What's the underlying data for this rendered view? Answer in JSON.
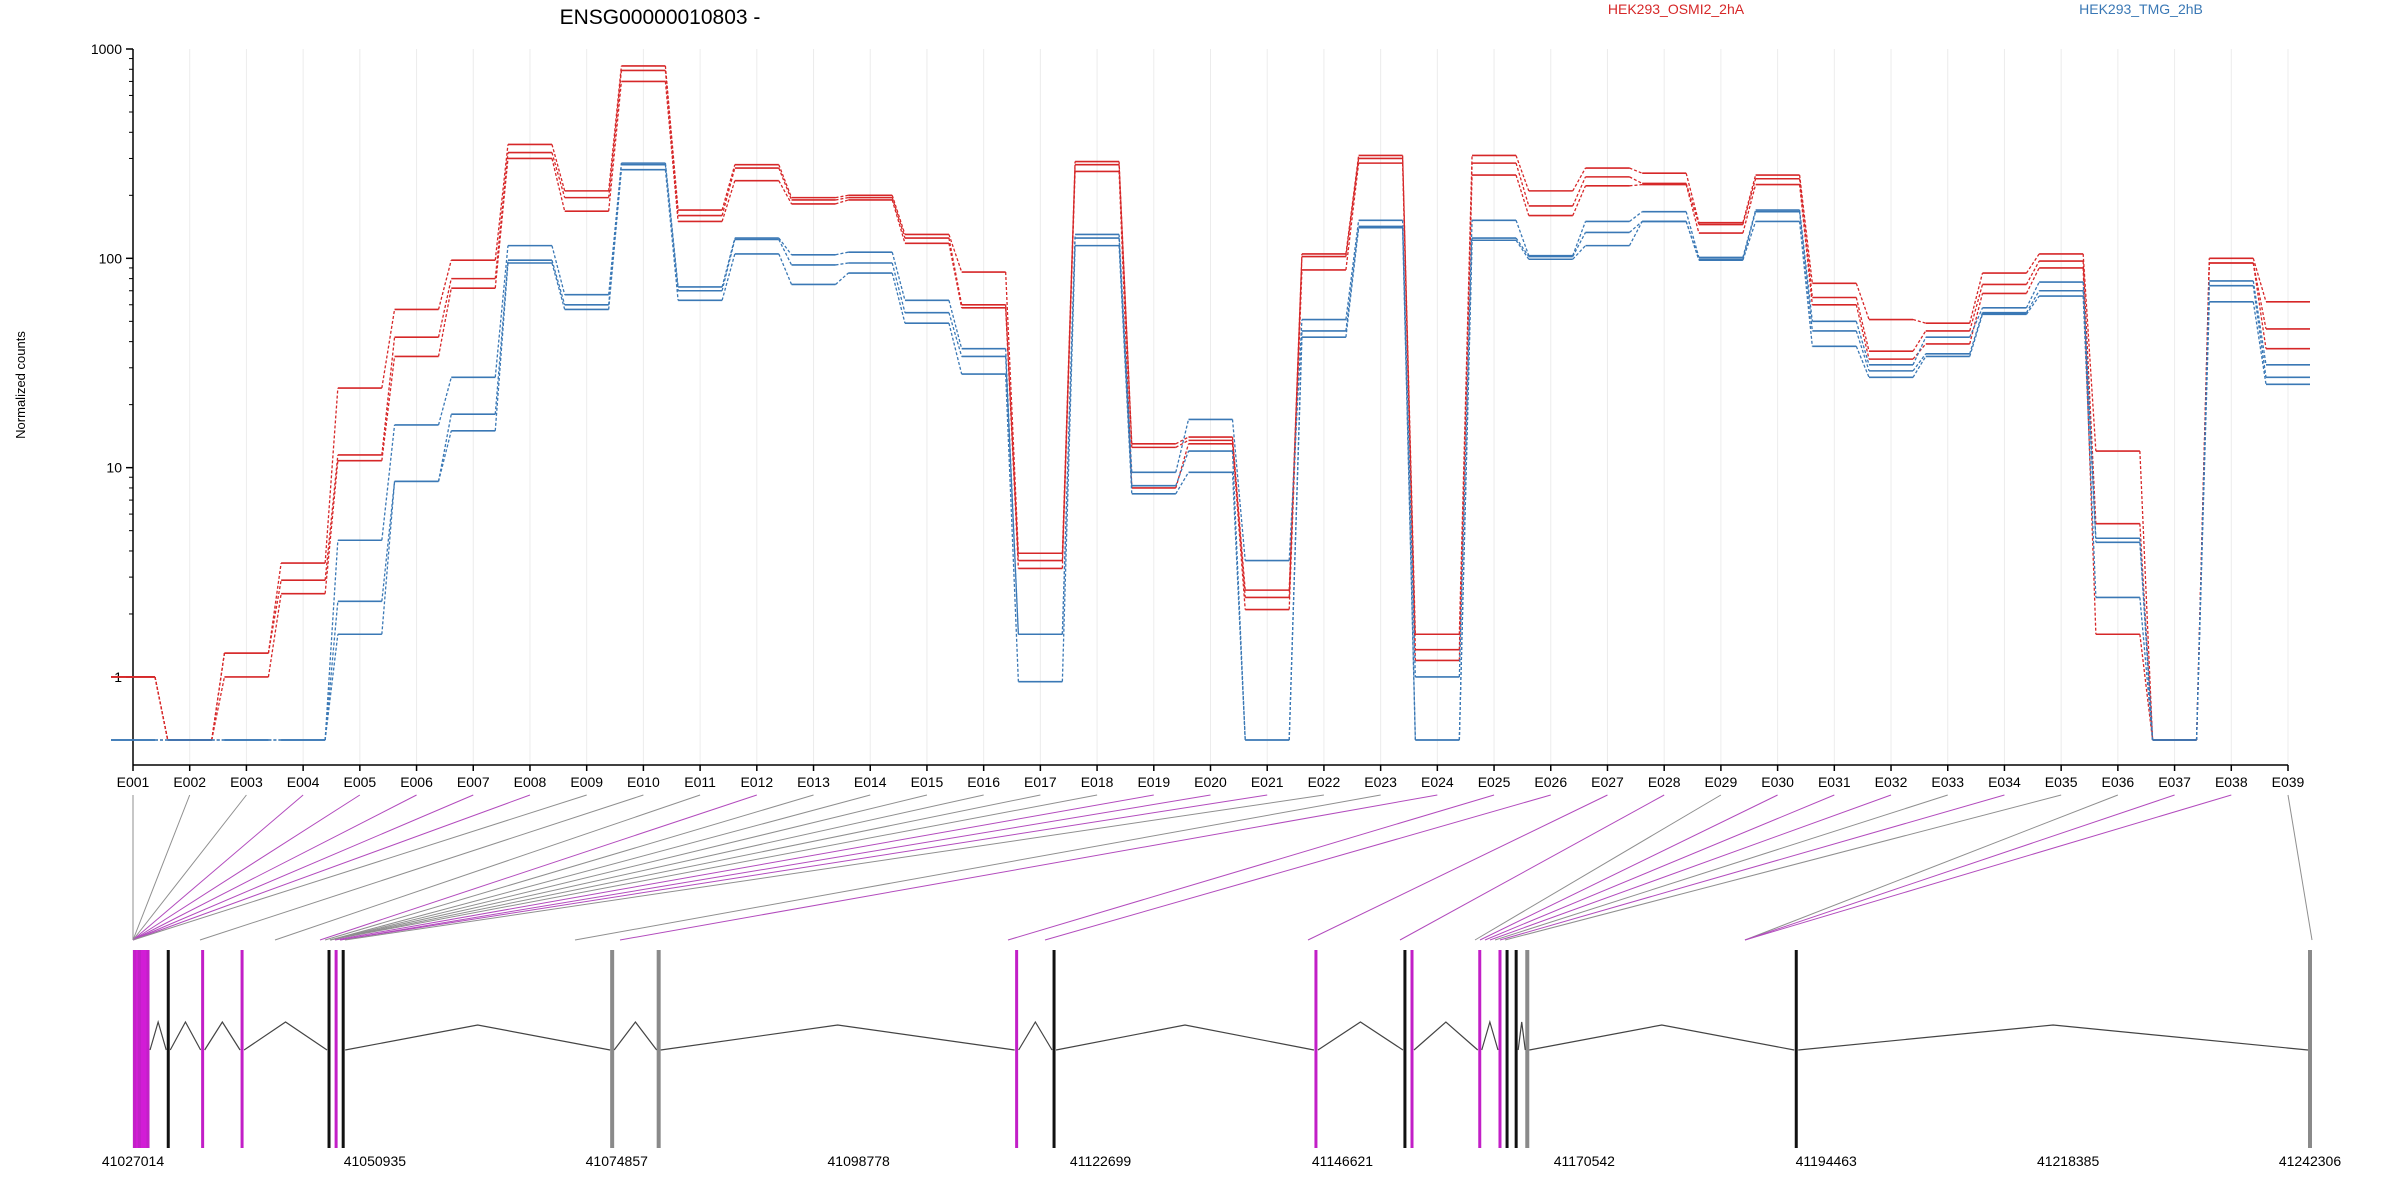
{
  "chart_data": {
    "type": "line",
    "title": "ENSG00000010803 -",
    "ylabel": "Normalized counts",
    "yscale": "log",
    "ylim": [
      0.5,
      1000
    ],
    "yticks": [
      "1",
      "10",
      "100",
      "1000"
    ],
    "grid": true,
    "legend_position": "top",
    "categories": [
      "E001",
      "E002",
      "E003",
      "E004",
      "E005",
      "E006",
      "E007",
      "E008",
      "E009",
      "E010",
      "E011",
      "E012",
      "E013",
      "E014",
      "E015",
      "E016",
      "E017",
      "E018",
      "E019",
      "E020",
      "E021",
      "E022",
      "E023",
      "E024",
      "E025",
      "E026",
      "E027",
      "E028",
      "E029",
      "E030",
      "E031",
      "E032",
      "E033",
      "E034",
      "E035",
      "E036",
      "E037",
      "E038",
      "E039"
    ],
    "groups": [
      {
        "name": "HEK293_OSMI2_2hA",
        "color": "#d62728"
      },
      {
        "name": "HEK293_TMG_2hB",
        "color": "#3a78b5"
      }
    ],
    "series": [
      {
        "group": 0,
        "values": [
          1.0,
          0.5,
          1.3,
          3.5,
          24,
          57,
          98,
          350,
          210,
          830,
          170,
          280,
          195,
          200,
          130,
          86,
          3.9,
          290,
          13,
          14,
          2.6,
          105,
          310,
          1.6,
          310,
          210,
          270,
          255,
          148,
          250,
          76,
          51,
          49,
          85,
          105,
          12,
          0.5,
          100,
          62
        ]
      },
      {
        "group": 0,
        "values": [
          1.0,
          0.5,
          1.3,
          2.9,
          11.5,
          42,
          80,
          320,
          195,
          790,
          160,
          270,
          190,
          195,
          125,
          60,
          3.6,
          280,
          12.5,
          13.5,
          2.4,
          102,
          300,
          1.35,
          285,
          178,
          245,
          228,
          145,
          240,
          65,
          36,
          45,
          75,
          97,
          5.4,
          0.5,
          95,
          46
        ]
      },
      {
        "group": 0,
        "values": [
          1.0,
          0.5,
          1.0,
          2.5,
          10.8,
          34,
          72,
          300,
          168,
          700,
          150,
          235,
          182,
          190,
          118,
          58,
          3.3,
          260,
          8,
          13,
          2.1,
          88,
          285,
          1.2,
          250,
          160,
          222,
          225,
          132,
          225,
          60,
          33,
          39,
          68,
          90,
          1.6,
          0.5,
          95,
          37
        ]
      },
      {
        "group": 1,
        "values": [
          0.5,
          0.5,
          0.5,
          0.5,
          4.5,
          16,
          27,
          115,
          67,
          285,
          73,
          125,
          104,
          107,
          63,
          37,
          1.6,
          130,
          9.5,
          17,
          3.6,
          51,
          152,
          1.0,
          152,
          103,
          150,
          167,
          101,
          170,
          50,
          31,
          42,
          58,
          77,
          4.6,
          0.5,
          78,
          31
        ]
      },
      {
        "group": 1,
        "values": [
          0.5,
          0.5,
          0.5,
          0.5,
          2.3,
          8.6,
          18,
          98,
          60,
          280,
          70,
          123,
          93,
          95,
          55,
          34,
          1.6,
          125,
          8.2,
          12,
          0.5,
          45,
          142,
          0.5,
          125,
          102,
          133,
          150,
          99,
          167,
          45,
          29,
          35,
          55,
          70,
          4.4,
          0.5,
          74,
          27
        ]
      },
      {
        "group": 1,
        "values": [
          0.5,
          0.5,
          0.5,
          0.5,
          1.6,
          8.6,
          15,
          95,
          57,
          265,
          63,
          105,
          75,
          85,
          49,
          28,
          0.95,
          115,
          7.5,
          9.5,
          0.5,
          42,
          140,
          0.5,
          122,
          99,
          115,
          150,
          98,
          150,
          38,
          27,
          34,
          54,
          66,
          2.4,
          0.5,
          62,
          25
        ]
      }
    ],
    "genome_coordinates": [
      "41027014",
      "41050935",
      "41074857",
      "41098778",
      "41122699",
      "41146621",
      "41170542",
      "41194463",
      "41218385",
      "41242306"
    ]
  }
}
